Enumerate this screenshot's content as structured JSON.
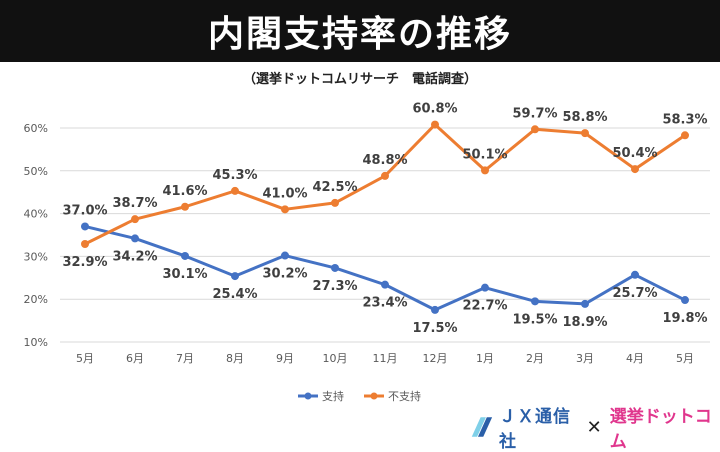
{
  "title": "内閣支持率の推移",
  "subtitle": "（選挙ドットコムリサーチ　電話調査）",
  "colors": {
    "support": "#4472c4",
    "nonsupport": "#ed7d31",
    "grid": "#d9d9d9",
    "banner": "#111111"
  },
  "chart_data": {
    "type": "line",
    "categories": [
      "5月",
      "6月",
      "7月",
      "8月",
      "9月",
      "10月",
      "11月",
      "12月",
      "1月",
      "2月",
      "3月",
      "4月",
      "5月"
    ],
    "series": [
      {
        "name": "支持",
        "values": [
          37.0,
          34.2,
          30.1,
          25.4,
          30.2,
          27.3,
          23.4,
          17.5,
          22.7,
          19.5,
          18.9,
          25.7,
          19.8
        ]
      },
      {
        "name": "不支持",
        "values": [
          32.9,
          38.7,
          41.6,
          45.3,
          41.0,
          42.5,
          48.8,
          60.8,
          50.1,
          59.7,
          58.8,
          50.4,
          58.3
        ]
      }
    ],
    "yticks": [
      "10%",
      "20%",
      "30%",
      "40%",
      "50%",
      "60%"
    ],
    "ylim": [
      10,
      60
    ],
    "grid": true,
    "legend": "bottom"
  },
  "footer": {
    "jx_label": "ＪＸ通信社",
    "cross": "✕",
    "senkyo_label": "選挙ドットコム"
  }
}
